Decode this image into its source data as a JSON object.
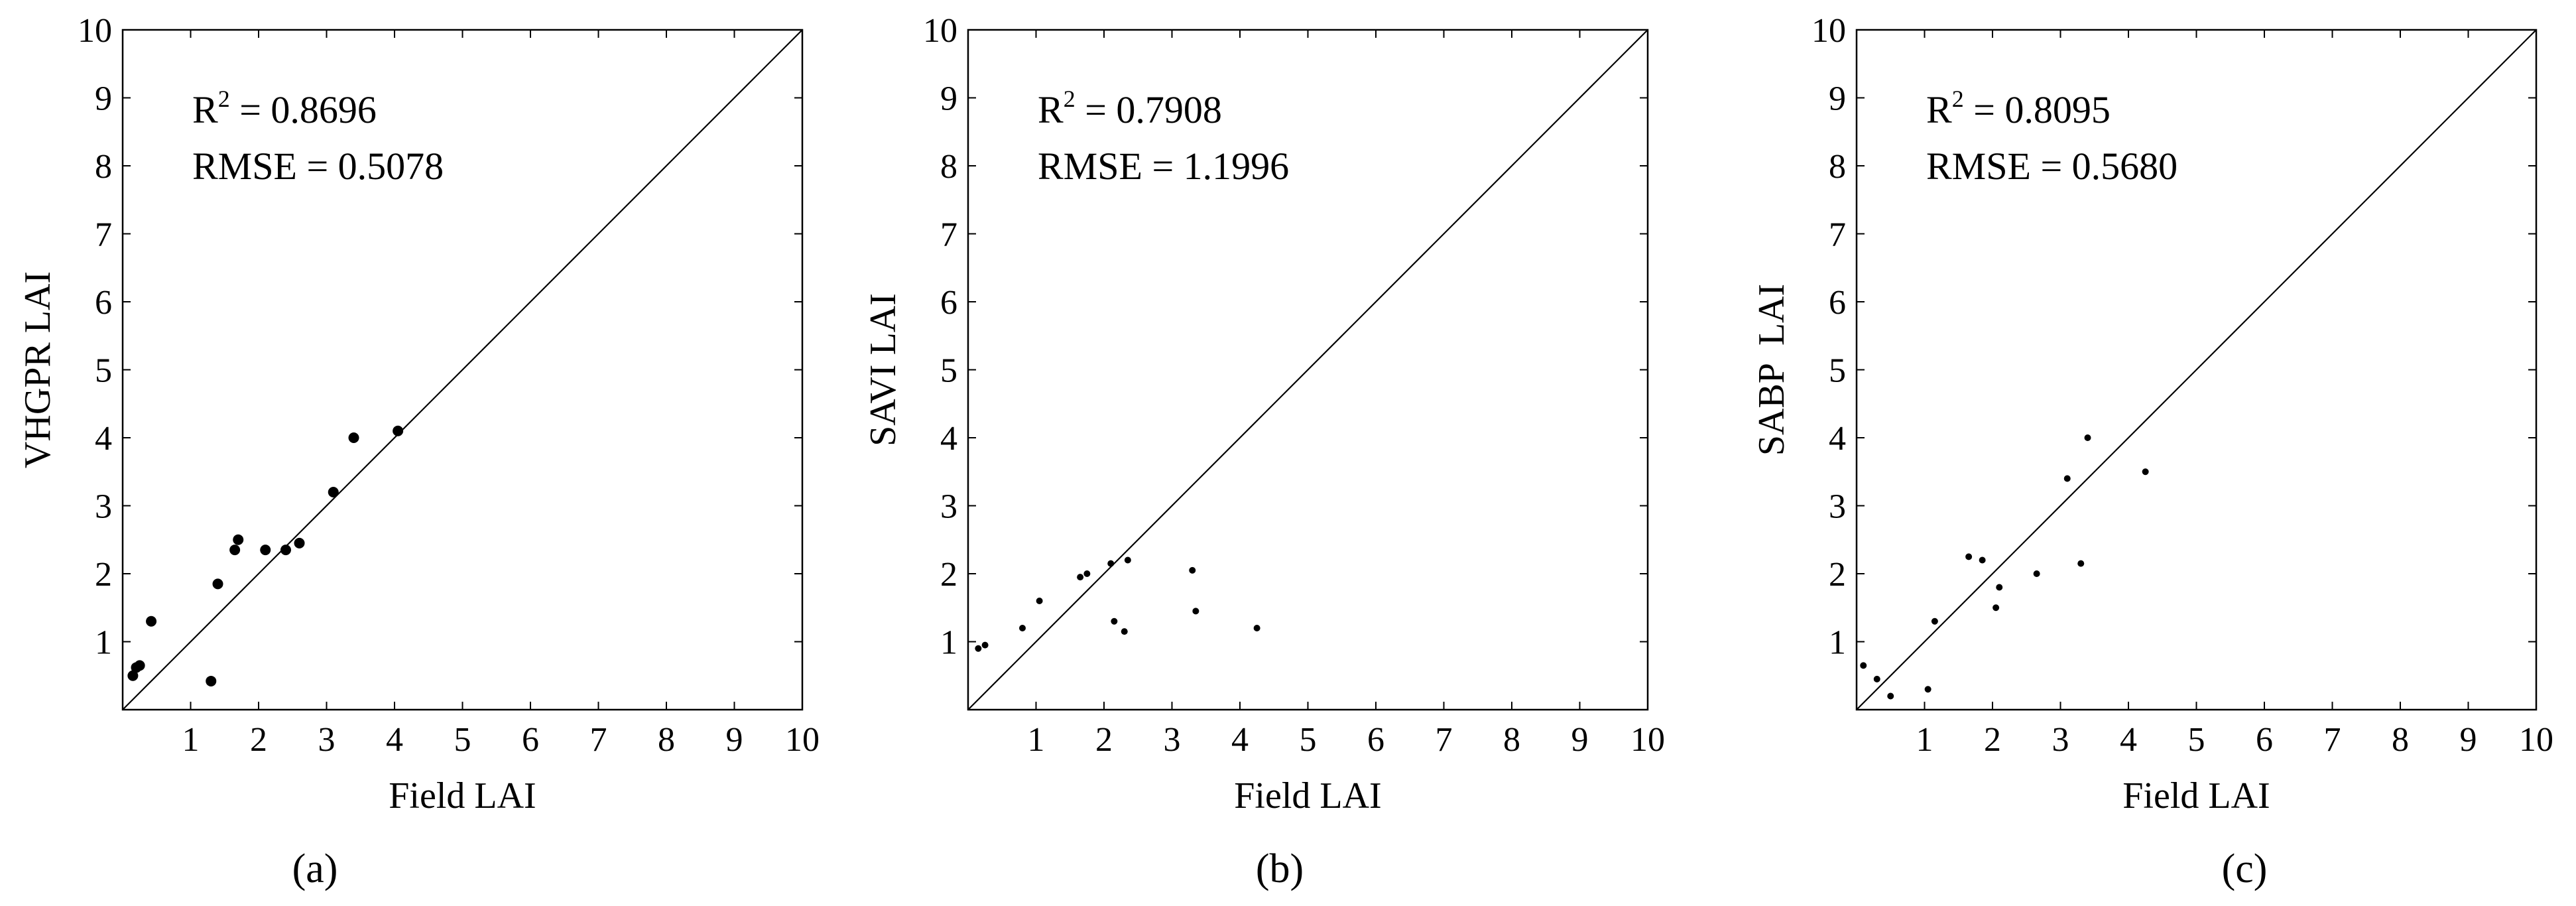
{
  "chart_data": [
    {
      "type": "scatter",
      "caption": "(a)",
      "xlabel": "Field LAI",
      "ylabel": "VHGPR LAI",
      "xlim": [
        0,
        10
      ],
      "ylim": [
        0,
        10
      ],
      "xticks": [
        "1",
        "2",
        "3",
        "4",
        "5",
        "6",
        "7",
        "8",
        "9",
        "10"
      ],
      "yticks": [
        "1",
        "2",
        "3",
        "4",
        "5",
        "6",
        "7",
        "8",
        "9",
        "10"
      ],
      "stats": {
        "r2_label": "R",
        "r2_sup": "2",
        "r2_value": " = 0.8696",
        "rmse": "RMSE = 0.5078"
      },
      "has_identity_line": true,
      "grid": false,
      "series": [
        {
          "x": [
            0.15,
            0.2,
            0.25,
            0.42,
            1.3,
            1.4,
            1.65,
            1.7,
            2.1,
            2.4,
            2.6,
            3.1,
            3.4,
            4.05
          ],
          "y": [
            0.5,
            0.62,
            0.65,
            1.3,
            0.42,
            1.85,
            2.35,
            2.5,
            2.35,
            2.35,
            2.45,
            3.2,
            4.0,
            4.1
          ]
        }
      ]
    },
    {
      "type": "scatter",
      "caption": "(b)",
      "xlabel": "Field LAI",
      "ylabel": "SAVI LAI",
      "xlim": [
        0,
        10
      ],
      "ylim": [
        0,
        10
      ],
      "xticks": [
        "1",
        "2",
        "3",
        "4",
        "5",
        "6",
        "7",
        "8",
        "9",
        "10"
      ],
      "yticks": [
        "1",
        "2",
        "3",
        "4",
        "5",
        "6",
        "7",
        "8",
        "9",
        "10"
      ],
      "stats": {
        "r2_label": "R",
        "r2_sup": "2",
        "r2_value": " = 0.7908",
        "rmse": "RMSE = 1.1996"
      },
      "has_identity_line": true,
      "grid": false,
      "series": [
        {
          "x": [
            0.15,
            0.25,
            0.8,
            1.05,
            1.65,
            1.75,
            2.1,
            2.15,
            2.3,
            2.35,
            3.3,
            3.35,
            4.25
          ],
          "y": [
            0.9,
            0.95,
            1.2,
            1.6,
            1.95,
            2.0,
            2.15,
            1.3,
            1.15,
            2.2,
            2.05,
            1.45,
            1.2
          ]
        }
      ]
    },
    {
      "type": "scatter",
      "caption": "(c)",
      "xlabel": "Field LAI",
      "ylabel": "SABP  LAI",
      "xlim": [
        0,
        10
      ],
      "ylim": [
        0,
        10
      ],
      "xticks": [
        "1",
        "2",
        "3",
        "4",
        "5",
        "6",
        "7",
        "8",
        "9",
        "10"
      ],
      "yticks": [
        "1",
        "2",
        "3",
        "4",
        "5",
        "6",
        "7",
        "8",
        "9",
        "10"
      ],
      "stats": {
        "r2_label": "R",
        "r2_sup": "2",
        "r2_value": " = 0.8095",
        "rmse": "RMSE = 0.5680"
      },
      "has_identity_line": true,
      "grid": false,
      "series": [
        {
          "x": [
            0.1,
            0.3,
            0.5,
            1.05,
            1.15,
            1.65,
            1.85,
            2.05,
            2.1,
            2.65,
            3.1,
            3.3,
            3.4,
            4.25
          ],
          "y": [
            0.65,
            0.45,
            0.2,
            0.3,
            1.3,
            2.25,
            2.2,
            1.5,
            1.8,
            2.0,
            3.4,
            2.15,
            4.0,
            3.5
          ]
        }
      ]
    }
  ]
}
